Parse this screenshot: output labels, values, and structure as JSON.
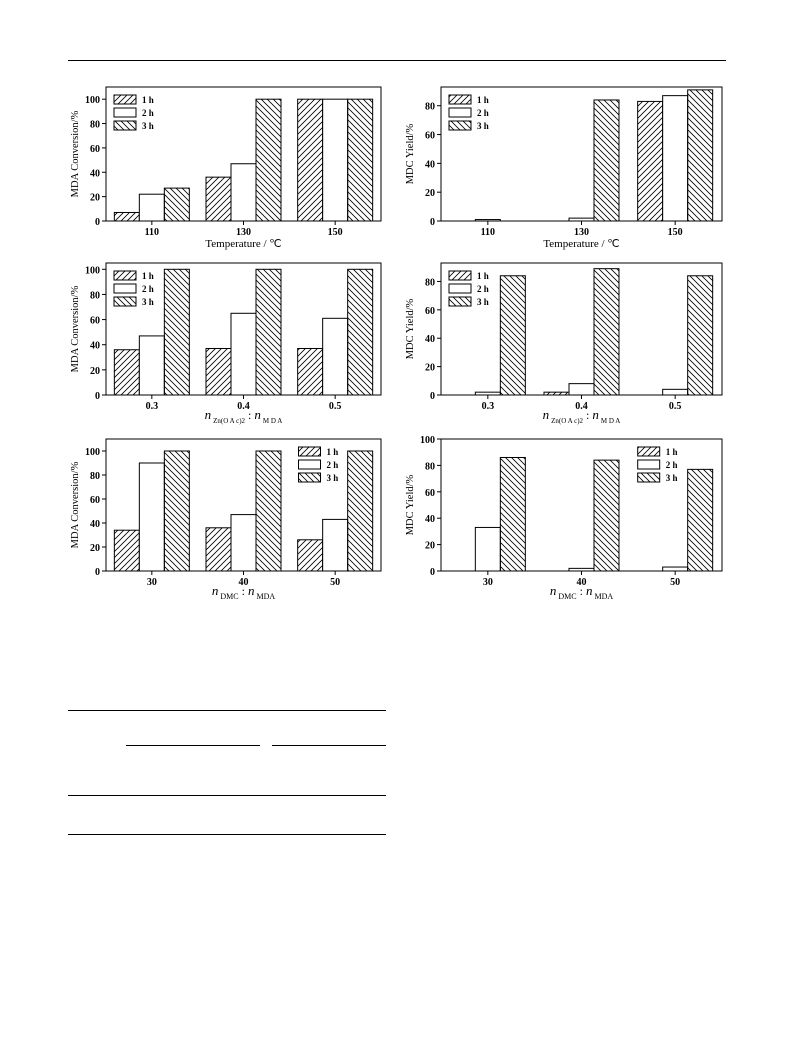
{
  "page": {
    "background": "#ffffff",
    "ink": "#000000"
  },
  "chart_data": [
    {
      "type": "bar",
      "ylabel": "MDA Conversion/%",
      "xlabel_text": "Temperature / ℃",
      "categories": [
        "110",
        "130",
        "150"
      ],
      "ylim": [
        0,
        110
      ],
      "yticks": [
        0,
        20,
        40,
        60,
        80,
        100
      ],
      "legend_position": "top-left",
      "series": [
        {
          "name": "1 h",
          "pattern": "hatch-fwd",
          "values": [
            7,
            36,
            100
          ]
        },
        {
          "name": "2 h",
          "pattern": "none",
          "values": [
            22,
            47,
            100
          ]
        },
        {
          "name": "3 h",
          "pattern": "hatch-back",
          "values": [
            27,
            100,
            100
          ]
        }
      ]
    },
    {
      "type": "bar",
      "ylabel": "MDC Yield/%",
      "xlabel_text": "Temperature / ℃",
      "categories": [
        "110",
        "130",
        "150"
      ],
      "ylim": [
        0,
        93
      ],
      "yticks": [
        0,
        20,
        40,
        60,
        80
      ],
      "legend_position": "top-left",
      "series": [
        {
          "name": "1 h",
          "pattern": "hatch-fwd",
          "values": [
            0,
            0,
            83
          ]
        },
        {
          "name": "2 h",
          "pattern": "none",
          "values": [
            1,
            2,
            87
          ]
        },
        {
          "name": "3 h",
          "pattern": "hatch-back",
          "values": [
            0,
            84,
            91
          ]
        }
      ]
    },
    {
      "type": "bar",
      "ylabel": "MDA Conversion/%",
      "xlabel_rich": {
        "n1": "n",
        "sub1": "Zn(O A c)2",
        "colon": ":",
        "n2": "n",
        "sub2": "M D A"
      },
      "categories": [
        "0.3",
        "0.4",
        "0.5"
      ],
      "ylim": [
        0,
        105
      ],
      "yticks": [
        0,
        20,
        40,
        60,
        80,
        100
      ],
      "legend_position": "top-left",
      "series": [
        {
          "name": "1 h",
          "pattern": "hatch-fwd",
          "values": [
            36,
            37,
            37
          ]
        },
        {
          "name": "2 h",
          "pattern": "none",
          "values": [
            47,
            65,
            61
          ]
        },
        {
          "name": "3 h",
          "pattern": "hatch-back",
          "values": [
            100,
            100,
            100
          ]
        }
      ]
    },
    {
      "type": "bar",
      "ylabel": "MDC Yield/%",
      "xlabel_rich": {
        "n1": "n",
        "sub1": "Zn(O A c)2",
        "colon": ":",
        "n2": "n",
        "sub2": "M D A"
      },
      "categories": [
        "0.3",
        "0.4",
        "0.5"
      ],
      "ylim": [
        0,
        93
      ],
      "yticks": [
        0,
        20,
        40,
        60,
        80
      ],
      "legend_position": "top-left",
      "series": [
        {
          "name": "1 h",
          "pattern": "hatch-fwd",
          "values": [
            0,
            2,
            0
          ]
        },
        {
          "name": "2 h",
          "pattern": "none",
          "values": [
            2,
            8,
            4
          ]
        },
        {
          "name": "3 h",
          "pattern": "hatch-back",
          "values": [
            84,
            89,
            84
          ]
        }
      ]
    },
    {
      "type": "bar",
      "ylabel": "MDA Conversion/%",
      "xlabel_rich": {
        "n1": "n",
        "sub1": "DMC",
        "colon": ":",
        "n2": "n",
        "sub2": "MDA"
      },
      "categories": [
        "30",
        "40",
        "50"
      ],
      "ylim": [
        0,
        110
      ],
      "yticks": [
        0,
        20,
        40,
        60,
        80,
        100
      ],
      "legend_position": "top-right",
      "series": [
        {
          "name": "1 h",
          "pattern": "hatch-fwd",
          "values": [
            34,
            36,
            26
          ]
        },
        {
          "name": "2 h",
          "pattern": "none",
          "values": [
            90,
            47,
            43
          ]
        },
        {
          "name": "3 h",
          "pattern": "hatch-back",
          "values": [
            100,
            100,
            100
          ]
        }
      ]
    },
    {
      "type": "bar",
      "ylabel": "MDC Yield/%",
      "xlabel_rich": {
        "n1": "n",
        "sub1": "DMC",
        "colon": ":",
        "n2": "n",
        "sub2": "MDA"
      },
      "categories": [
        "30",
        "40",
        "50"
      ],
      "ylim": [
        0,
        100
      ],
      "yticks": [
        0,
        20,
        40,
        60,
        80,
        100
      ],
      "legend_position": "top-right",
      "series": [
        {
          "name": "1 h",
          "pattern": "hatch-fwd",
          "values": [
            0,
            0,
            0
          ]
        },
        {
          "name": "2 h",
          "pattern": "none",
          "values": [
            33,
            2,
            3
          ]
        },
        {
          "name": "3 h",
          "pattern": "hatch-back",
          "values": [
            86,
            84,
            77
          ]
        }
      ]
    }
  ]
}
